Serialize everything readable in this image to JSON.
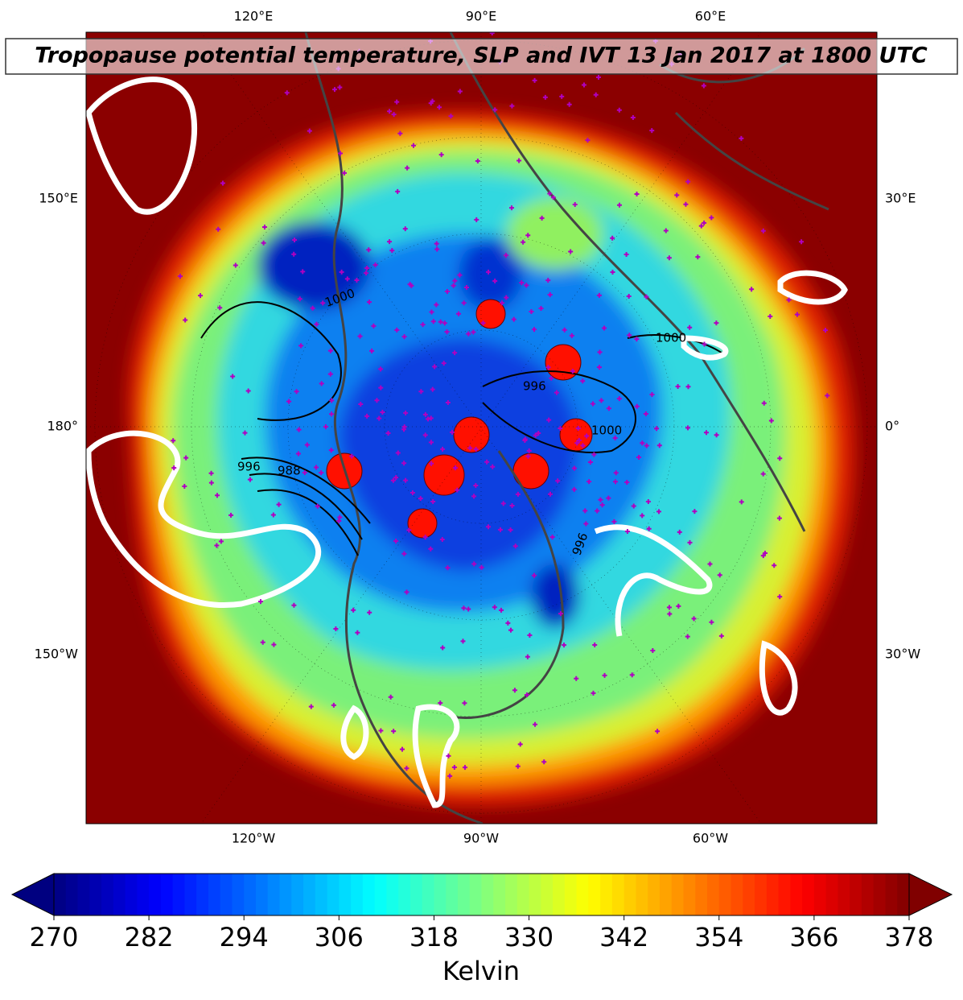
{
  "map": {
    "title": "Tropopause potential temperature, SLP and IVT 13 Jan 2017 at 1800 UTC",
    "labels": {
      "top": [
        "120°E",
        "90°E",
        "60°E"
      ],
      "bottom": [
        "120°W",
        "90°W",
        "60°W"
      ],
      "left": [
        "150°E",
        "180°",
        "150°W"
      ],
      "right": [
        "30°E",
        "0°",
        "30°W"
      ]
    },
    "contour_labels": [
      "1000",
      "1000",
      "996",
      "996",
      "988",
      "1000",
      "996"
    ]
  },
  "colorbar": {
    "lim": [
      270,
      378
    ],
    "ticks": [
      270,
      282,
      294,
      306,
      318,
      330,
      342,
      354,
      366,
      378
    ],
    "label": "Kelvin"
  }
}
